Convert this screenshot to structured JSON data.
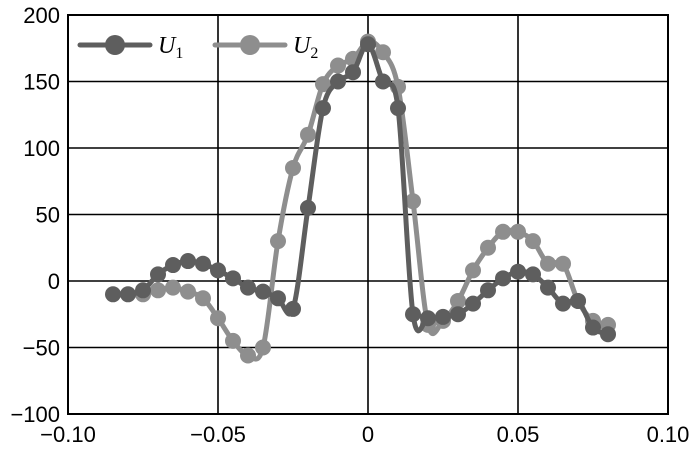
{
  "chart_data": {
    "type": "line",
    "xlim": [
      -0.1,
      0.1
    ],
    "ylim": [
      -100,
      200
    ],
    "xticks": [
      -0.1,
      -0.05,
      0,
      0.05,
      0.1
    ],
    "yticks": [
      -100,
      -50,
      0,
      50,
      100,
      150,
      200
    ],
    "xtick_labels": [
      "−0.10",
      "−0.05",
      "0",
      "0.05",
      "0.10"
    ],
    "ytick_labels": [
      "−100",
      "−50",
      "0",
      "50",
      "100",
      "150",
      "200"
    ],
    "grid": true,
    "legend": "top-left",
    "colors": {
      "U1": "#5e5e5e",
      "U2": "#8e8e8e"
    },
    "series": [
      {
        "key": "U1",
        "name": "U",
        "subscript": "1",
        "x": [
          -0.085,
          -0.08,
          -0.075,
          -0.07,
          -0.065,
          -0.06,
          -0.055,
          -0.05,
          -0.045,
          -0.04,
          -0.035,
          -0.03,
          -0.025,
          -0.02,
          -0.015,
          -0.01,
          -0.005,
          0.0,
          0.005,
          0.01,
          0.015,
          0.02,
          0.025,
          0.03,
          0.035,
          0.04,
          0.045,
          0.05,
          0.055,
          0.06,
          0.065,
          0.07,
          0.075,
          0.08
        ],
        "y": [
          -10,
          -10,
          -7,
          5,
          12,
          15,
          13,
          8,
          2,
          -5,
          -8,
          -13,
          -21,
          55,
          130,
          150,
          157,
          178,
          150,
          130,
          -25,
          -28,
          -27,
          -25,
          -17,
          -7,
          2,
          7,
          5,
          -5,
          -17,
          -15,
          -35,
          -40
        ]
      },
      {
        "key": "U2",
        "name": "U",
        "subscript": "2",
        "x": [
          -0.075,
          -0.07,
          -0.065,
          -0.06,
          -0.055,
          -0.05,
          -0.045,
          -0.04,
          -0.035,
          -0.03,
          -0.025,
          -0.02,
          -0.015,
          -0.01,
          -0.005,
          0.0,
          0.005,
          0.01,
          0.015,
          0.02,
          0.025,
          0.03,
          0.035,
          0.04,
          0.045,
          0.05,
          0.055,
          0.06,
          0.065,
          0.07,
          0.075,
          0.08
        ],
        "y": [
          -10,
          -7,
          -5,
          -8,
          -13,
          -28,
          -45,
          -56,
          -50,
          30,
          85,
          110,
          148,
          162,
          167,
          180,
          172,
          146,
          60,
          -33,
          -30,
          -15,
          8,
          25,
          37,
          37,
          30,
          13,
          13,
          -15,
          -30,
          -33
        ]
      }
    ]
  }
}
